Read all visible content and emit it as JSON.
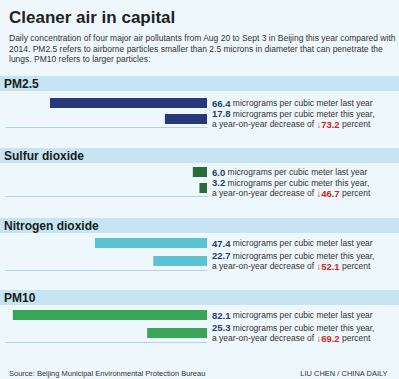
{
  "title": "Cleaner air in capital",
  "subtitle": "Daily concentration of four major air pollutants from Aug 20 to Sept 3 in Beijing this year compared with 2014. PM2.5 refers to airborne particles smaller than 2.5 microns in diameter that can penetrate the lungs. PM10 refers to larger particles:",
  "source": "Source: Beijing Municipal Environmental Protection Bureau",
  "credit": "LIU CHEN / CHINA DAILY",
  "chart_data": [
    {
      "type": "bar",
      "title": "PM2.5",
      "orientation": "horizontal",
      "categories": [
        null,
        null
      ],
      "values": [
        66.4,
        17.8
      ],
      "value_labels": [
        "66.4 micrograms per cubic meter last year",
        "17.8 micrograms per cubic meter this year, a year-on-year decrease of ↓73.2 percent"
      ],
      "data_labels": true,
      "color": "#26377a",
      "xlim": [
        0,
        85
      ],
      "tick_labels": false,
      "grid": false
    },
    {
      "type": "bar",
      "title": "Sulfur dioxide",
      "orientation": "horizontal",
      "categories": [
        null,
        null
      ],
      "values": [
        6.0,
        3.2
      ],
      "value_labels": [
        "6.0 micrograms per cubic meter last year",
        "3.2 micrograms per cubic meter this year, a year-on-year decrease of ↓46.7 percent"
      ],
      "data_labels": true,
      "color": "#2d6b3c",
      "xlim": [
        0,
        85
      ],
      "tick_labels": false,
      "grid": false
    },
    {
      "type": "bar",
      "title": "Nitrogen dioxide",
      "orientation": "horizontal",
      "categories": [
        null,
        null
      ],
      "values": [
        47.4,
        22.7
      ],
      "value_labels": [
        "47.4 micrograms per cubic meter last year",
        "22.7 micrograms per cubic meter this year, a year-on-year decrease of ↓52.1 percent"
      ],
      "data_labels": true,
      "color": "#5cc3d1",
      "xlim": [
        0,
        85
      ],
      "tick_labels": false,
      "grid": false
    },
    {
      "type": "bar",
      "title": "PM10",
      "orientation": "horizontal",
      "categories": [
        null,
        null
      ],
      "values": [
        82.1,
        25.3
      ],
      "value_labels": [
        "82.1 micrograms per cubic meter last year",
        "25.3 micrograms per cubic meter this year, a year-on-year decrease of ↓69.2 percent"
      ],
      "data_labels": true,
      "color": "#3aa556",
      "xlim": [
        0,
        85
      ],
      "tick_labels": false,
      "grid": false
    }
  ]
}
